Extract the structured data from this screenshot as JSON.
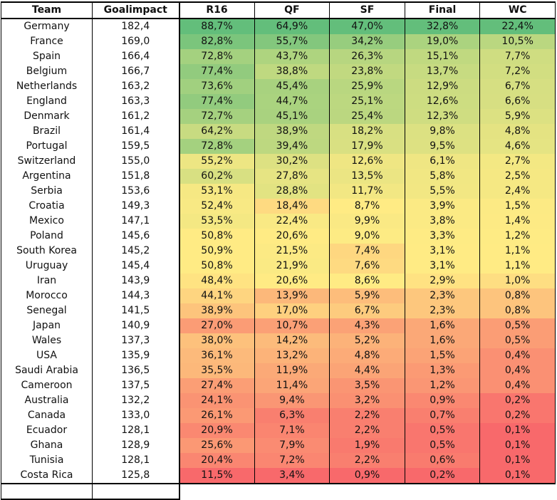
{
  "chart_data": {
    "type": "table",
    "headers": [
      "Team",
      "Goalimpact",
      "R16",
      "QF",
      "SF",
      "Final",
      "WC"
    ],
    "rows": [
      [
        "Germany",
        "182,4",
        "88,7%",
        "64,9%",
        "47,0%",
        "32,8%",
        "22,4%"
      ],
      [
        "France",
        "169,0",
        "82,8%",
        "55,7%",
        "34,2%",
        "19,0%",
        "10,5%"
      ],
      [
        "Spain",
        "166,4",
        "72,8%",
        "43,7%",
        "26,3%",
        "15,1%",
        "7,7%"
      ],
      [
        "Belgium",
        "166,7",
        "77,4%",
        "38,8%",
        "23,8%",
        "13,7%",
        "7,2%"
      ],
      [
        "Netherlands",
        "163,2",
        "73,6%",
        "45,4%",
        "25,9%",
        "12,9%",
        "6,7%"
      ],
      [
        "England",
        "163,3",
        "77,4%",
        "44,7%",
        "25,1%",
        "12,6%",
        "6,6%"
      ],
      [
        "Denmark",
        "161,2",
        "72,7%",
        "45,1%",
        "25,4%",
        "12,3%",
        "5,9%"
      ],
      [
        "Brazil",
        "161,4",
        "64,2%",
        "38,9%",
        "18,2%",
        "9,8%",
        "4,8%"
      ],
      [
        "Portugal",
        "159,5",
        "72,8%",
        "39,4%",
        "17,9%",
        "9,5%",
        "4,6%"
      ],
      [
        "Switzerland",
        "155,0",
        "55,2%",
        "30,2%",
        "12,6%",
        "6,1%",
        "2,7%"
      ],
      [
        "Argentina",
        "151,8",
        "60,2%",
        "27,8%",
        "13,5%",
        "5,8%",
        "2,5%"
      ],
      [
        "Serbia",
        "153,6",
        "53,1%",
        "28,8%",
        "11,7%",
        "5,5%",
        "2,4%"
      ],
      [
        "Croatia",
        "149,3",
        "52,4%",
        "18,4%",
        "8,7%",
        "3,9%",
        "1,5%"
      ],
      [
        "Mexico",
        "147,1",
        "53,5%",
        "22,4%",
        "9,9%",
        "3,8%",
        "1,4%"
      ],
      [
        "Poland",
        "145,6",
        "50,8%",
        "20,6%",
        "9,0%",
        "3,3%",
        "1,2%"
      ],
      [
        "South Korea",
        "145,2",
        "50,9%",
        "21,5%",
        "7,4%",
        "3,1%",
        "1,1%"
      ],
      [
        "Uruguay",
        "145,4",
        "50,8%",
        "21,9%",
        "7,6%",
        "3,1%",
        "1,1%"
      ],
      [
        "Iran",
        "143,9",
        "48,4%",
        "20,6%",
        "8,6%",
        "2,9%",
        "1,0%"
      ],
      [
        "Morocco",
        "144,3",
        "44,1%",
        "13,9%",
        "5,9%",
        "2,3%",
        "0,8%"
      ],
      [
        "Senegal",
        "141,5",
        "38,9%",
        "17,0%",
        "6,7%",
        "2,3%",
        "0,8%"
      ],
      [
        "Japan",
        "140,9",
        "27,0%",
        "10,7%",
        "4,3%",
        "1,6%",
        "0,5%"
      ],
      [
        "Wales",
        "137,3",
        "38,0%",
        "14,2%",
        "5,2%",
        "1,6%",
        "0,5%"
      ],
      [
        "USA",
        "135,9",
        "36,1%",
        "13,2%",
        "4,8%",
        "1,5%",
        "0,4%"
      ],
      [
        "Saudi Arabia",
        "136,5",
        "35,5%",
        "11,9%",
        "4,4%",
        "1,3%",
        "0,4%"
      ],
      [
        "Cameroon",
        "137,5",
        "27,4%",
        "11,4%",
        "3,5%",
        "1,2%",
        "0,4%"
      ],
      [
        "Australia",
        "132,2",
        "24,1%",
        "9,4%",
        "3,2%",
        "0,9%",
        "0,2%"
      ],
      [
        "Canada",
        "133,0",
        "26,1%",
        "6,3%",
        "2,2%",
        "0,7%",
        "0,2%"
      ],
      [
        "Ecuador",
        "128,1",
        "20,9%",
        "7,1%",
        "2,2%",
        "0,5%",
        "0,1%"
      ],
      [
        "Ghana",
        "128,9",
        "25,6%",
        "7,9%",
        "1,9%",
        "0,5%",
        "0,1%"
      ],
      [
        "Tunisia",
        "128,1",
        "20,4%",
        "7,2%",
        "2,2%",
        "0,6%",
        "0,1%"
      ],
      [
        "Costa Rica",
        "125,8",
        "11,5%",
        "3,4%",
        "0,9%",
        "0,2%",
        "0,1%"
      ]
    ],
    "heatmap_colors": {
      "low": "#f8696b",
      "mid": "#ffeb84",
      "high": "#63be7b"
    }
  }
}
